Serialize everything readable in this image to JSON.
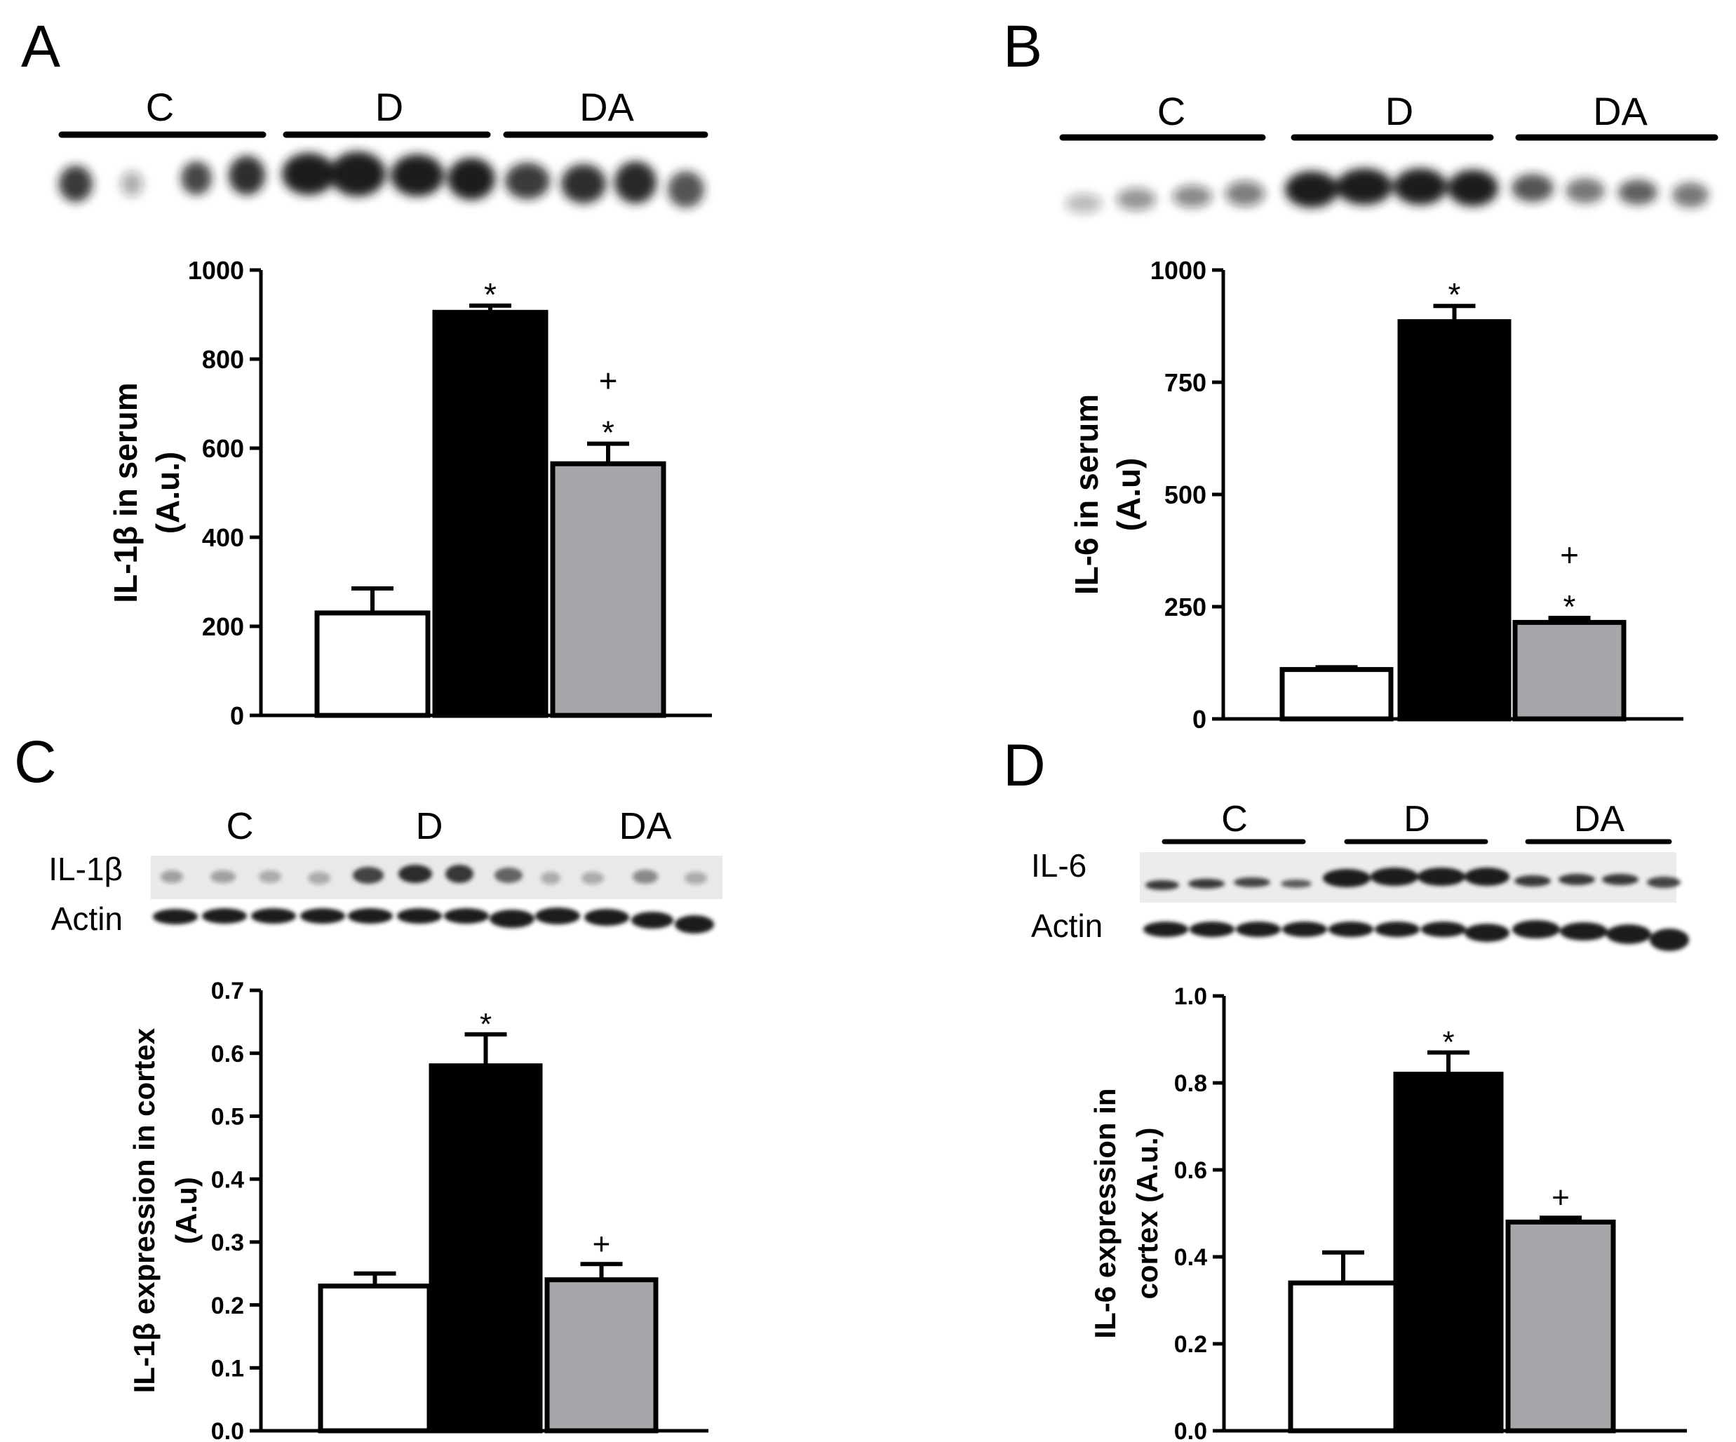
{
  "groups": [
    "C",
    "D",
    "DA"
  ],
  "colors": {
    "C": "#ffffff",
    "D": "#000000",
    "DA": "#a6a7aa",
    "stroke": "#000000"
  },
  "blot_rows": {
    "il1b": "IL-1β",
    "il6": "IL-6",
    "actin": "Actin"
  },
  "chart_data": [
    {
      "panel": "A",
      "type": "bar",
      "categories": [
        "C",
        "D",
        "DA"
      ],
      "values": [
        230,
        905,
        565
      ],
      "errors": [
        55,
        15,
        45
      ],
      "ylabel": [
        "IL-1β  in serum",
        "(A.u.)"
      ],
      "ylim": [
        0,
        1000
      ],
      "yticks": [
        "0",
        "200",
        "400",
        "600",
        "800",
        "1000"
      ],
      "annotations": [
        [
          "",
          "*",
          "+",
          "*"
        ]
      ],
      "annotation_groups": {
        "D": [
          "*"
        ],
        "DA": [
          "+",
          "*"
        ]
      }
    },
    {
      "panel": "B",
      "type": "bar",
      "categories": [
        "C",
        "D",
        "DA"
      ],
      "values": [
        110,
        885,
        215
      ],
      "errors": [
        5,
        35,
        10
      ],
      "ylabel": [
        "IL-6  in serum",
        "(A.u)"
      ],
      "ylim": [
        0,
        1000
      ],
      "yticks": [
        "0",
        "250",
        "500",
        "750",
        "1000"
      ],
      "annotation_groups": {
        "D": [
          "*"
        ],
        "DA": [
          "+",
          "*"
        ]
      }
    },
    {
      "panel": "C",
      "type": "bar",
      "categories": [
        "C",
        "D",
        "DA"
      ],
      "values": [
        0.23,
        0.58,
        0.24
      ],
      "errors": [
        0.02,
        0.05,
        0.025
      ],
      "ylabel": [
        "IL-1β expression in cortex",
        "(A.u)"
      ],
      "ylim": [
        0,
        0.7
      ],
      "yticks": [
        "0.0",
        "0.1",
        "0.2",
        "0.3",
        "0.4",
        "0.5",
        "0.6",
        "0.7"
      ],
      "annotation_groups": {
        "D": [
          "*"
        ],
        "DA": [
          "+"
        ]
      }
    },
    {
      "panel": "D",
      "type": "bar",
      "categories": [
        "C",
        "D",
        "DA"
      ],
      "values": [
        0.34,
        0.82,
        0.48
      ],
      "errors": [
        0.07,
        0.05,
        0.01
      ],
      "ylabel": [
        "IL-6 expression in",
        "cortex (A.u.)"
      ],
      "ylim": [
        0,
        1.0
      ],
      "yticks": [
        "0.0",
        "0.2",
        "0.4",
        "0.6",
        "0.8",
        "1.0"
      ],
      "annotation_groups": {
        "D": [
          "*"
        ],
        "DA": [
          "+"
        ]
      }
    }
  ]
}
